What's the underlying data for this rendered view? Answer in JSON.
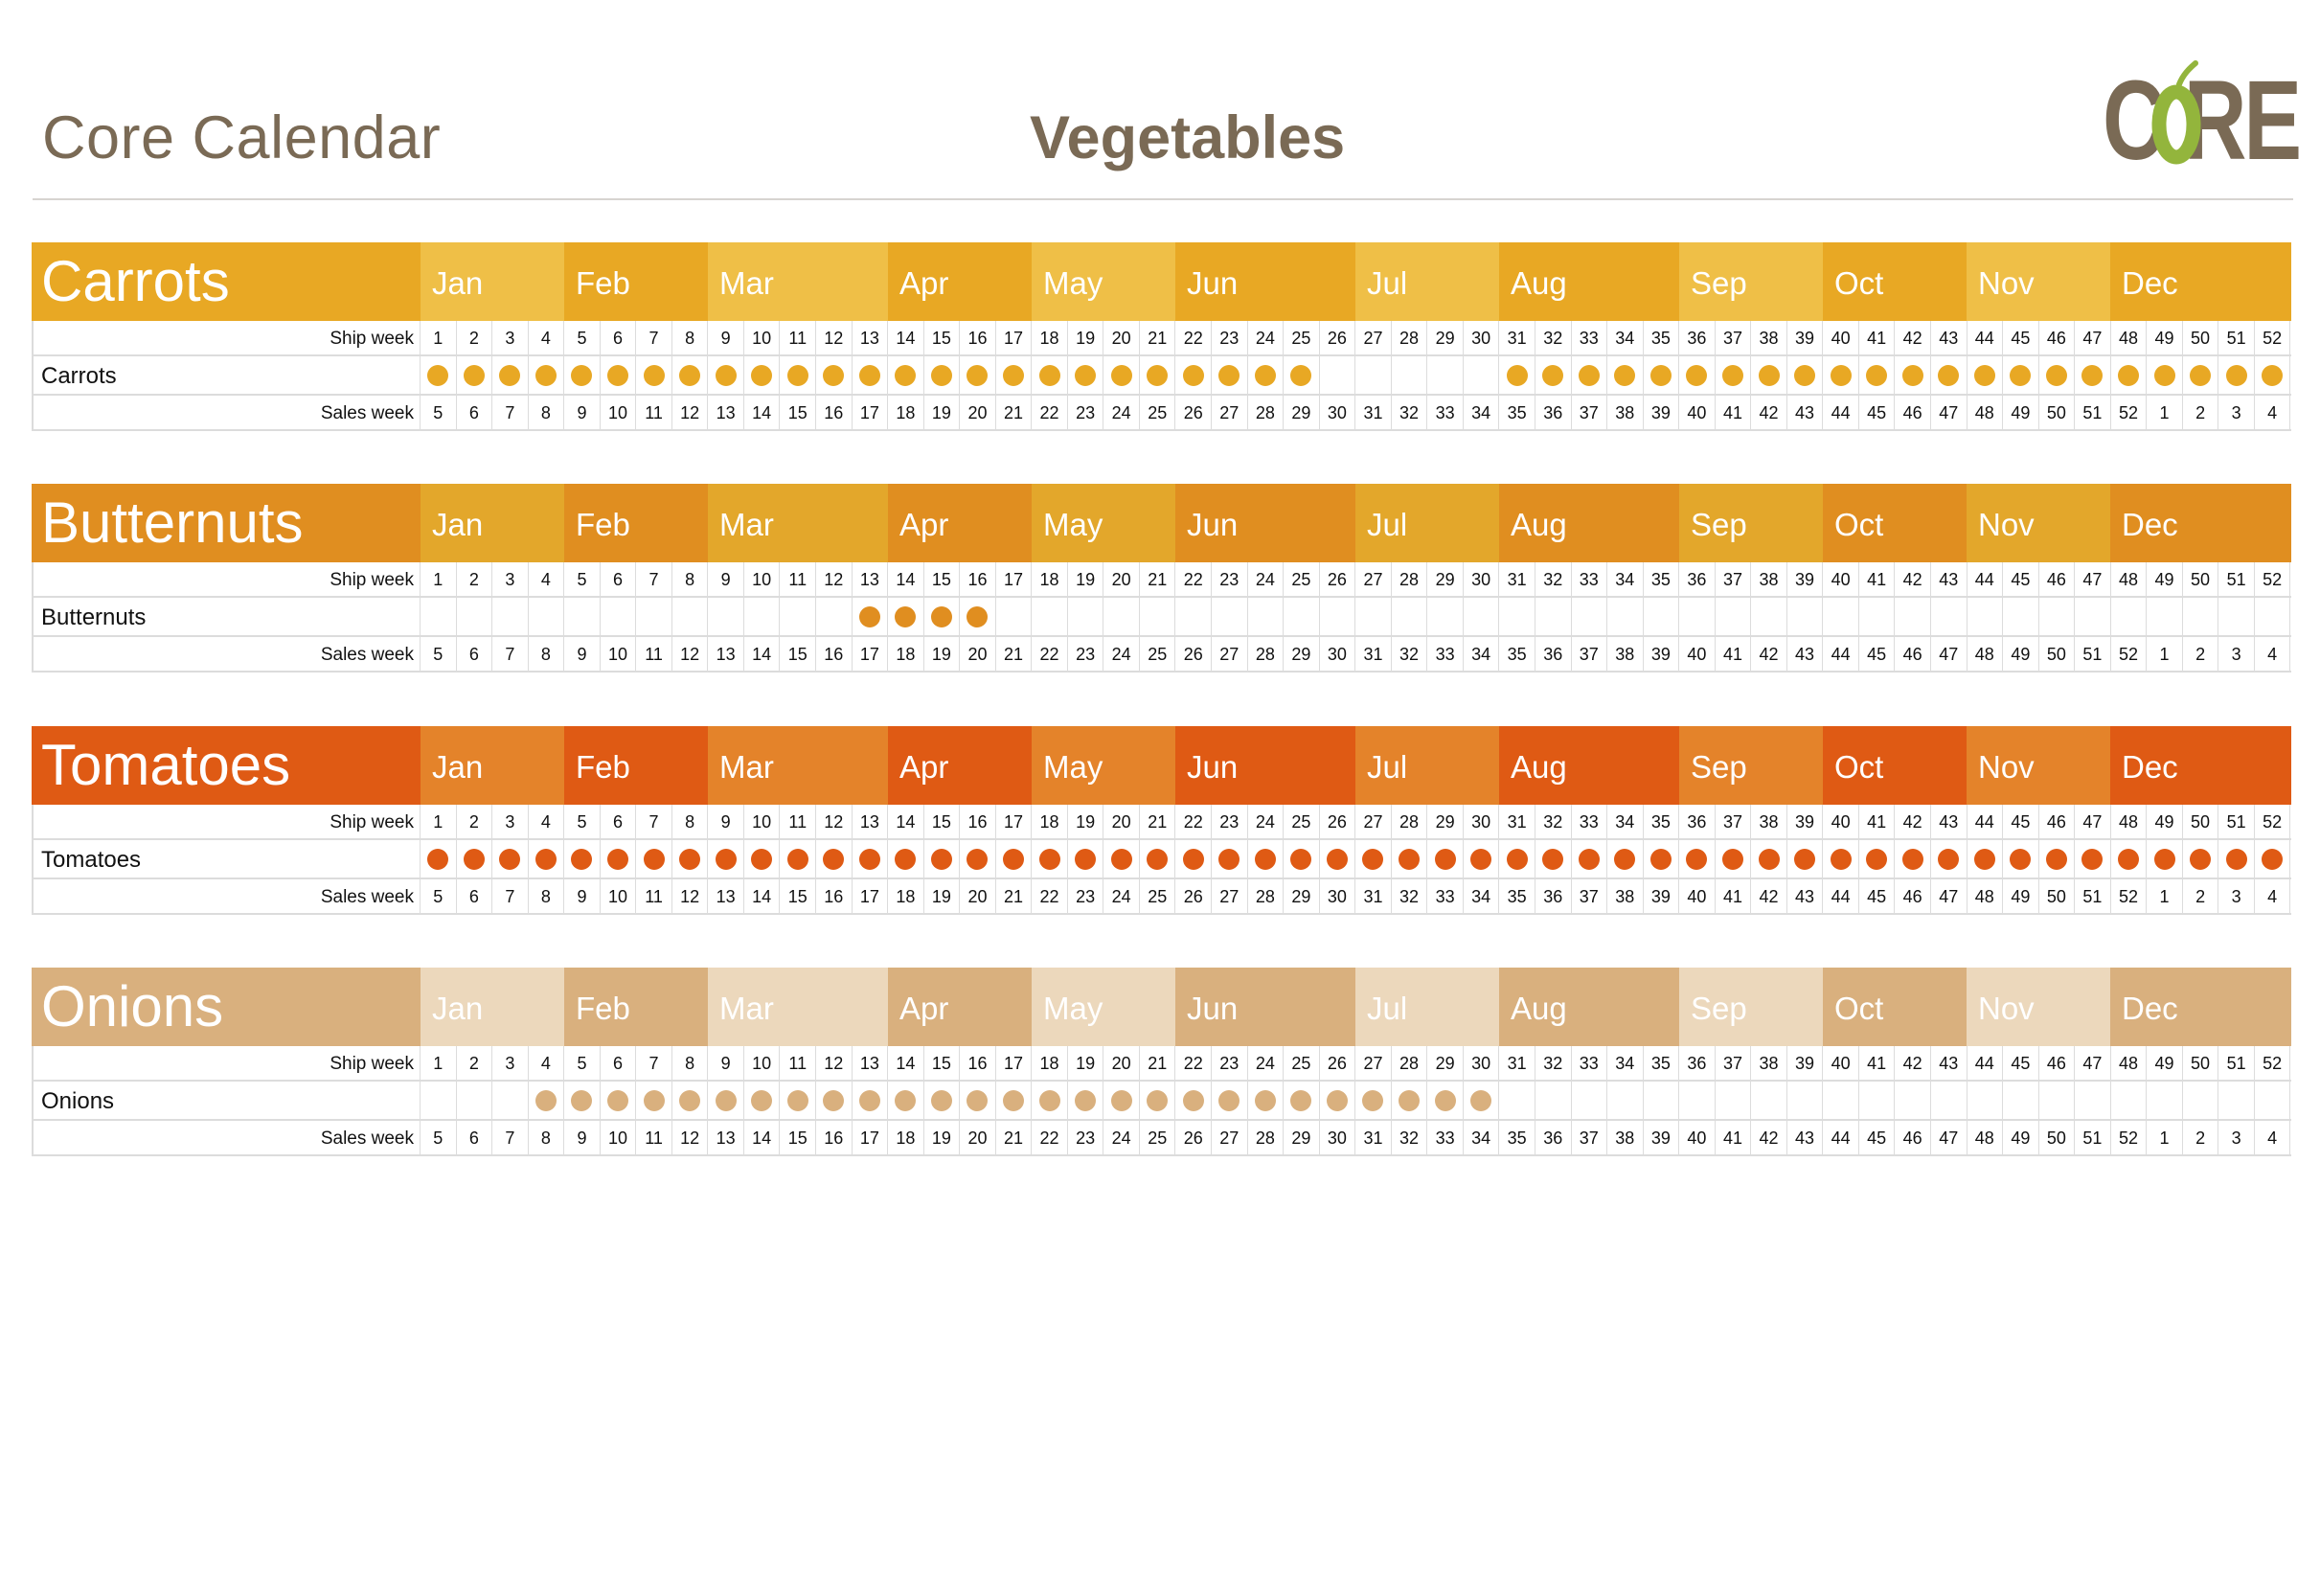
{
  "header": {
    "app_title": "Core Calendar",
    "sheet_title": "Vegetables",
    "logo_text": "CORE"
  },
  "labels": {
    "ship_week": "Ship week",
    "sales_week": "Sales week"
  },
  "months": [
    "Jan",
    "Feb",
    "Mar",
    "Apr",
    "May",
    "Jun",
    "Jul",
    "Aug",
    "Sep",
    "Oct",
    "Nov",
    "Dec"
  ],
  "ship_weeks": [
    1,
    2,
    3,
    4,
    5,
    6,
    7,
    8,
    9,
    10,
    11,
    12,
    13,
    14,
    15,
    16,
    17,
    18,
    19,
    20,
    21,
    22,
    23,
    24,
    25,
    26,
    27,
    28,
    29,
    30,
    31,
    32,
    33,
    34,
    35,
    36,
    37,
    38,
    39,
    40,
    41,
    42,
    43,
    44,
    45,
    46,
    47,
    48,
    49,
    50,
    51,
    52
  ],
  "sales_weeks": [
    5,
    6,
    7,
    8,
    9,
    10,
    11,
    12,
    13,
    14,
    15,
    16,
    17,
    18,
    19,
    20,
    21,
    22,
    23,
    24,
    25,
    26,
    27,
    28,
    29,
    30,
    31,
    32,
    33,
    34,
    35,
    36,
    37,
    38,
    39,
    40,
    41,
    42,
    43,
    44,
    45,
    46,
    47,
    48,
    49,
    50,
    51,
    52,
    1,
    2,
    3,
    4
  ],
  "products": [
    {
      "title": "Carrots",
      "item": "Carrots",
      "colors": {
        "dark": "#e8a824",
        "light": "#efbf47",
        "dot": "#e8a824",
        "title_bg": "#e8a824"
      },
      "available_weeks": [
        1,
        2,
        3,
        4,
        5,
        6,
        7,
        8,
        9,
        10,
        11,
        12,
        13,
        14,
        15,
        16,
        17,
        18,
        19,
        20,
        21,
        22,
        23,
        24,
        25,
        31,
        32,
        33,
        34,
        35,
        36,
        37,
        38,
        39,
        40,
        41,
        42,
        43,
        44,
        45,
        46,
        47,
        48,
        49,
        50,
        51,
        52
      ]
    },
    {
      "title": "Butternuts",
      "item": "Butternuts",
      "colors": {
        "dark": "#e08e20",
        "light": "#e3a72b",
        "dot": "#e08e20",
        "title_bg": "#e08e20"
      },
      "available_weeks": [
        13,
        14,
        15,
        16
      ]
    },
    {
      "title": "Tomatoes",
      "item": "Tomatoes",
      "colors": {
        "dark": "#df5a14",
        "light": "#e4832a",
        "dot": "#df5a14",
        "title_bg": "#df5a14"
      },
      "available_weeks": [
        1,
        2,
        3,
        4,
        5,
        6,
        7,
        8,
        9,
        10,
        11,
        12,
        13,
        14,
        15,
        16,
        17,
        18,
        19,
        20,
        21,
        22,
        23,
        24,
        25,
        26,
        27,
        28,
        29,
        30,
        31,
        32,
        33,
        34,
        35,
        36,
        37,
        38,
        39,
        40,
        41,
        42,
        43,
        44,
        45,
        46,
        47,
        48,
        49,
        50,
        51,
        52
      ]
    },
    {
      "title": "Onions",
      "item": "Onions",
      "colors": {
        "dark": "#d9b07e",
        "light": "#ecd8bc",
        "dot": "#d9b07e",
        "title_bg": "#d9b07e"
      },
      "available_weeks": [
        4,
        5,
        6,
        7,
        8,
        9,
        10,
        11,
        12,
        13,
        14,
        15,
        16,
        17,
        18,
        19,
        20,
        21,
        22,
        23,
        24,
        25,
        26,
        27,
        28,
        29,
        30
      ]
    }
  ]
}
